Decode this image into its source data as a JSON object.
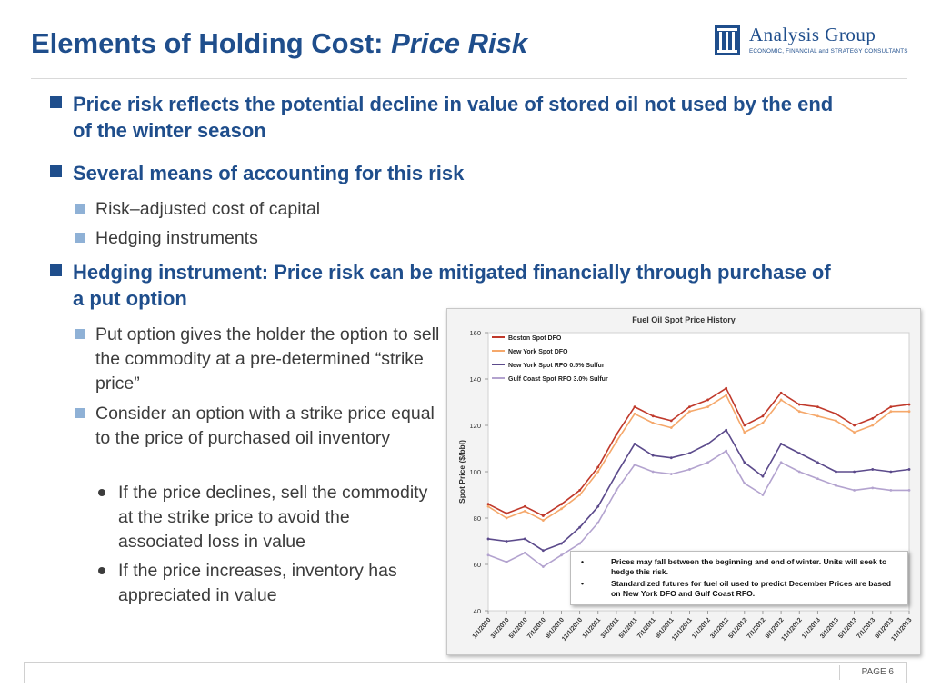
{
  "slide": {
    "title_main": "Elements of Holding Cost: ",
    "title_emphasis": "Price Risk",
    "logo_name": "Analysis Group",
    "logo_tagline": "ECONOMIC, FINANCIAL and STRATEGY CONSULTANTS",
    "page_label": "PAGE 6"
  },
  "bullets": {
    "b1": "Price risk reflects the potential decline in value of stored oil not used by the end of the winter season",
    "b2": "Several means of accounting for this risk",
    "b2_subs": [
      "Risk–adjusted cost of capital",
      "Hedging instruments"
    ],
    "b3": "Hedging instrument:  Price risk can be mitigated financially through purchase of a put option",
    "b3_sub1": "Put option gives the holder the option to sell the commodity at a pre-determined “strike price”",
    "b3_sub2": "Consider an option with a strike price equal to the price of purchased oil inventory",
    "b3_subsub": [
      "If the price declines, sell the commodity at the strike price to avoid the associated loss in value",
      "If the price increases, inventory has appreciated in value"
    ]
  },
  "chart_data": {
    "type": "line",
    "title": "Fuel Oil Spot Price History",
    "ylabel": "Spot Price ($/bbl)",
    "xlabel": "",
    "ylim": [
      40,
      160
    ],
    "yticks": [
      40,
      60,
      80,
      100,
      120,
      140,
      160
    ],
    "grid": false,
    "legend_position": "top-left",
    "x": [
      "1/1/2010",
      "3/1/2010",
      "5/1/2010",
      "7/1/2010",
      "9/1/2010",
      "11/1/2010",
      "1/1/2011",
      "3/1/2011",
      "5/1/2011",
      "7/1/2011",
      "9/1/2011",
      "11/1/2011",
      "1/1/2012",
      "3/1/2012",
      "5/1/2012",
      "7/1/2012",
      "9/1/2012",
      "11/1/2012",
      "1/1/2013",
      "3/1/2013",
      "5/1/2013",
      "7/1/2013",
      "9/1/2013",
      "11/1/2013"
    ],
    "series": [
      {
        "name": "Boston Spot DFO",
        "color": "#c0392b",
        "values": [
          86,
          82,
          85,
          81,
          86,
          92,
          102,
          116,
          128,
          124,
          122,
          128,
          131,
          136,
          120,
          124,
          134,
          129,
          128,
          125,
          120,
          123,
          128,
          129
        ]
      },
      {
        "name": "New York Spot DFO",
        "color": "#f5a86b",
        "values": [
          85,
          80,
          83,
          79,
          84,
          90,
          100,
          113,
          125,
          121,
          119,
          126,
          128,
          133,
          117,
          121,
          131,
          126,
          124,
          122,
          117,
          120,
          126,
          126
        ]
      },
      {
        "name": "New York Spot RFO 0.5% Sulfur",
        "color": "#5b4a8b",
        "values": [
          71,
          70,
          71,
          66,
          69,
          76,
          85,
          99,
          112,
          107,
          106,
          108,
          112,
          118,
          104,
          98,
          112,
          108,
          104,
          100,
          100,
          101,
          100,
          101
        ]
      },
      {
        "name": "Gulf Coast Spot RFO 3.0% Sulfur",
        "color": "#b3a3cf",
        "values": [
          64,
          61,
          65,
          59,
          64,
          69,
          78,
          92,
          103,
          100,
          99,
          101,
          104,
          109,
          95,
          90,
          104,
          100,
          97,
          94,
          92,
          93,
          92,
          92
        ]
      }
    ],
    "annotations": [
      "Prices may fall between the beginning and end of winter. Units will seek to hedge this risk.",
      "Standardized futures for fuel oil used to predict December Prices are based on New York DFO and Gulf Coast RFO."
    ]
  }
}
